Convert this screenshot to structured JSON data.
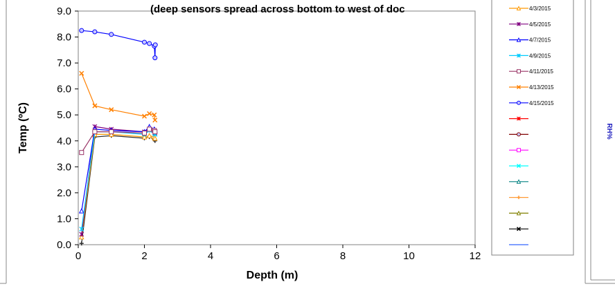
{
  "chart_data": {
    "type": "line",
    "title": "(deep sensors spread across bottom to west of doc",
    "xlabel": "Depth (m)",
    "ylabel": "Temp (ºC)",
    "xlim": [
      0,
      12
    ],
    "ylim": [
      0,
      9
    ],
    "xticks": [
      0,
      2,
      4,
      6,
      8,
      10,
      12
    ],
    "yticks": [
      0.0,
      1.0,
      2.0,
      3.0,
      4.0,
      5.0,
      6.0,
      7.0,
      8.0,
      9.0
    ],
    "ytick_labels": [
      "0.0",
      "1.0",
      "2.0",
      "3.0",
      "4.0",
      "5.0",
      "6.0",
      "7.0",
      "8.0",
      "9.0"
    ],
    "grid": false,
    "legend_position": "right",
    "side_label": "RH%",
    "series": [
      {
        "name": "",
        "color": "#2b2b2b",
        "marker": "plus",
        "x": [
          0.1,
          0.5,
          1.0,
          2.0,
          2.15,
          2.3,
          2.32
        ],
        "y": [
          0.05,
          4.15,
          4.2,
          4.1,
          4.15,
          4.05,
          4.0
        ]
      },
      {
        "name": "4/3/2015",
        "color": "#ff9900",
        "marker": "triangle",
        "x": [
          0.1,
          0.5,
          1.0,
          2.0,
          2.15,
          2.3,
          2.32
        ],
        "y": [
          0.3,
          4.25,
          4.25,
          4.15,
          4.2,
          4.15,
          4.1
        ]
      },
      {
        "name": "4/5/2015",
        "color": "#800080",
        "marker": "star",
        "x": [
          0.1,
          0.5,
          1.0,
          2.0,
          2.15,
          2.3,
          2.32
        ],
        "y": [
          0.4,
          4.55,
          4.45,
          4.35,
          4.45,
          4.4,
          4.3
        ]
      },
      {
        "name": "4/7/2015",
        "color": "#0000ff",
        "marker": "triangle",
        "x": [
          0.1,
          0.5,
          1.0,
          2.0,
          2.15,
          2.3,
          2.32
        ],
        "y": [
          1.3,
          4.45,
          4.4,
          4.35,
          4.55,
          4.45,
          4.4
        ]
      },
      {
        "name": "4/9/2015",
        "color": "#00ccff",
        "marker": "star",
        "x": [
          0.1,
          0.5,
          1.0,
          2.0,
          2.15,
          2.3,
          2.32
        ],
        "y": [
          0.6,
          4.35,
          4.35,
          4.25,
          4.4,
          4.3,
          4.25
        ]
      },
      {
        "name": "4/11/2015",
        "color": "#993366",
        "marker": "square",
        "x": [
          0.1,
          0.5,
          1.0,
          2.0,
          2.15,
          2.3,
          2.32
        ],
        "y": [
          3.55,
          4.35,
          4.35,
          4.3,
          4.45,
          4.4,
          4.35
        ]
      },
      {
        "name": "4/13/2015",
        "color": "#ff8000",
        "marker": "x",
        "x": [
          0.1,
          0.5,
          1.0,
          2.0,
          2.15,
          2.3,
          2.32
        ],
        "y": [
          6.6,
          5.35,
          5.2,
          4.95,
          5.05,
          5.0,
          4.8
        ]
      },
      {
        "name": "4/15/2015",
        "color": "#0000ff",
        "marker": "circle",
        "x": [
          0.1,
          0.5,
          1.0,
          2.0,
          2.15,
          2.3,
          2.32,
          2.33
        ],
        "y": [
          8.25,
          8.2,
          8.1,
          7.8,
          7.75,
          7.65,
          7.2,
          7.7
        ]
      }
    ],
    "legend_extra_entries": [
      {
        "color": "#ff0000",
        "marker": "star"
      },
      {
        "color": "#800000",
        "marker": "circle"
      },
      {
        "color": "#ff00ff",
        "marker": "square"
      },
      {
        "color": "#00ffff",
        "marker": "x"
      },
      {
        "color": "#008080",
        "marker": "triangle"
      },
      {
        "color": "#ff9933",
        "marker": "plus"
      },
      {
        "color": "#808000",
        "marker": "triangle"
      },
      {
        "color": "#000000",
        "marker": "x"
      },
      {
        "color": "#3366ff",
        "marker": "none"
      }
    ]
  }
}
